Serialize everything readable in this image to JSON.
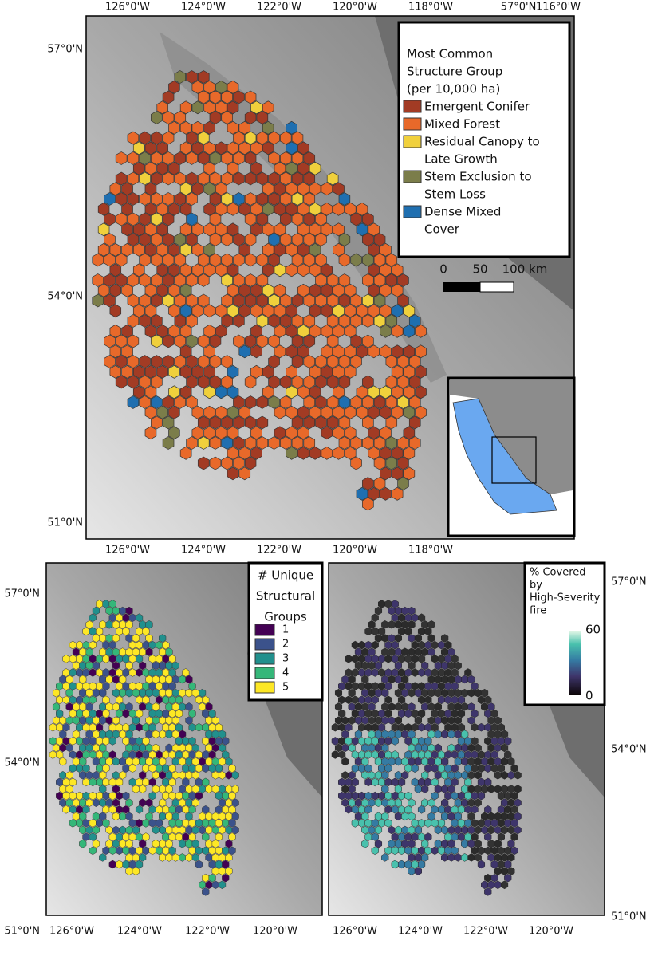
{
  "top_map": {
    "lon_labels_top": [
      "126°0'W",
      "124°0'W",
      "122°0'W",
      "120°0'W",
      "118°0'W",
      "116°0'W"
    ],
    "lat_labels_right": [
      "57°0'N"
    ],
    "lon_labels_bottom": [
      "126°0'W",
      "124°0'W",
      "122°0'W",
      "120°0'W",
      "118°0'W"
    ],
    "lat_labels": [
      "57°0'N",
      "54°0'N",
      "51°0'N"
    ],
    "legend": {
      "title": [
        "Most Common",
        "Structure Group",
        "(per 10,000 ha)"
      ],
      "items": [
        {
          "label": [
            "Emergent Conifer"
          ],
          "color": "#a23b24"
        },
        {
          "label": [
            "Mixed Forest"
          ],
          "color": "#e8692a"
        },
        {
          "label": [
            "Residual Canopy to",
            "Late Growth"
          ],
          "color": "#f0d03c"
        },
        {
          "label": [
            "Stem Exclusion to",
            "Stem Loss"
          ],
          "color": "#7b7d4a"
        },
        {
          "label": [
            "Dense Mixed",
            "Cover"
          ],
          "color": "#1f6fb0"
        }
      ]
    },
    "scale_bar": [
      "0",
      "50",
      "100 km"
    ]
  },
  "map_left": {
    "lon_labels_bottom": [
      "126°0'W",
      "124°0'W",
      "122°0'W",
      "120°0'W"
    ],
    "lat_labels": [
      "57°0'N",
      "54°0'N",
      "51°0'N"
    ],
    "legend": {
      "title": [
        "# Unique",
        "Structural",
        "Groups"
      ],
      "items": [
        {
          "label": "1",
          "color": "#440154"
        },
        {
          "label": "2",
          "color": "#3b528b"
        },
        {
          "label": "3",
          "color": "#21908d"
        },
        {
          "label": "4",
          "color": "#35b779"
        },
        {
          "label": "5",
          "color": "#fde725"
        }
      ]
    }
  },
  "map_right": {
    "lon_labels_bottom": [
      "126°0'W",
      "124°0'W",
      "122°0'W",
      "120°0'W"
    ],
    "lat_labels": [
      "57°0'N",
      "54°0'N",
      "51°0'N"
    ],
    "legend": {
      "title": [
        "% Covered",
        "by",
        "High-Severity",
        "fire"
      ],
      "max": "60",
      "min": "0"
    }
  }
}
